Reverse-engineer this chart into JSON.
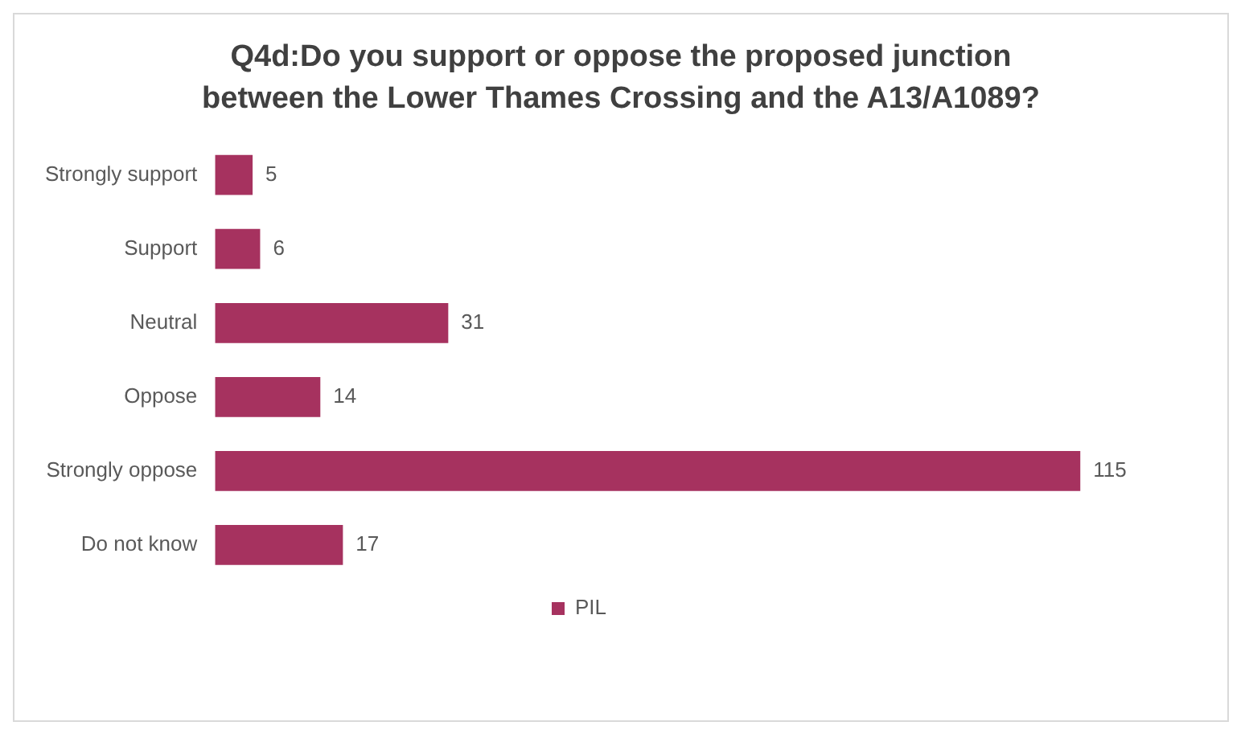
{
  "chart_data": {
    "type": "bar",
    "orientation": "horizontal",
    "title": "Q4d:Do you support or oppose the proposed junction between the Lower Thames Crossing and the A13/A1089?",
    "categories": [
      "Strongly support",
      "Support",
      "Neutral",
      "Oppose",
      "Strongly oppose",
      "Do not know"
    ],
    "series": [
      {
        "name": "PIL",
        "color": "#a6325f",
        "values": [
          5,
          6,
          31,
          14,
          115,
          17
        ]
      }
    ],
    "data_labels": true,
    "legend": "bottom"
  }
}
